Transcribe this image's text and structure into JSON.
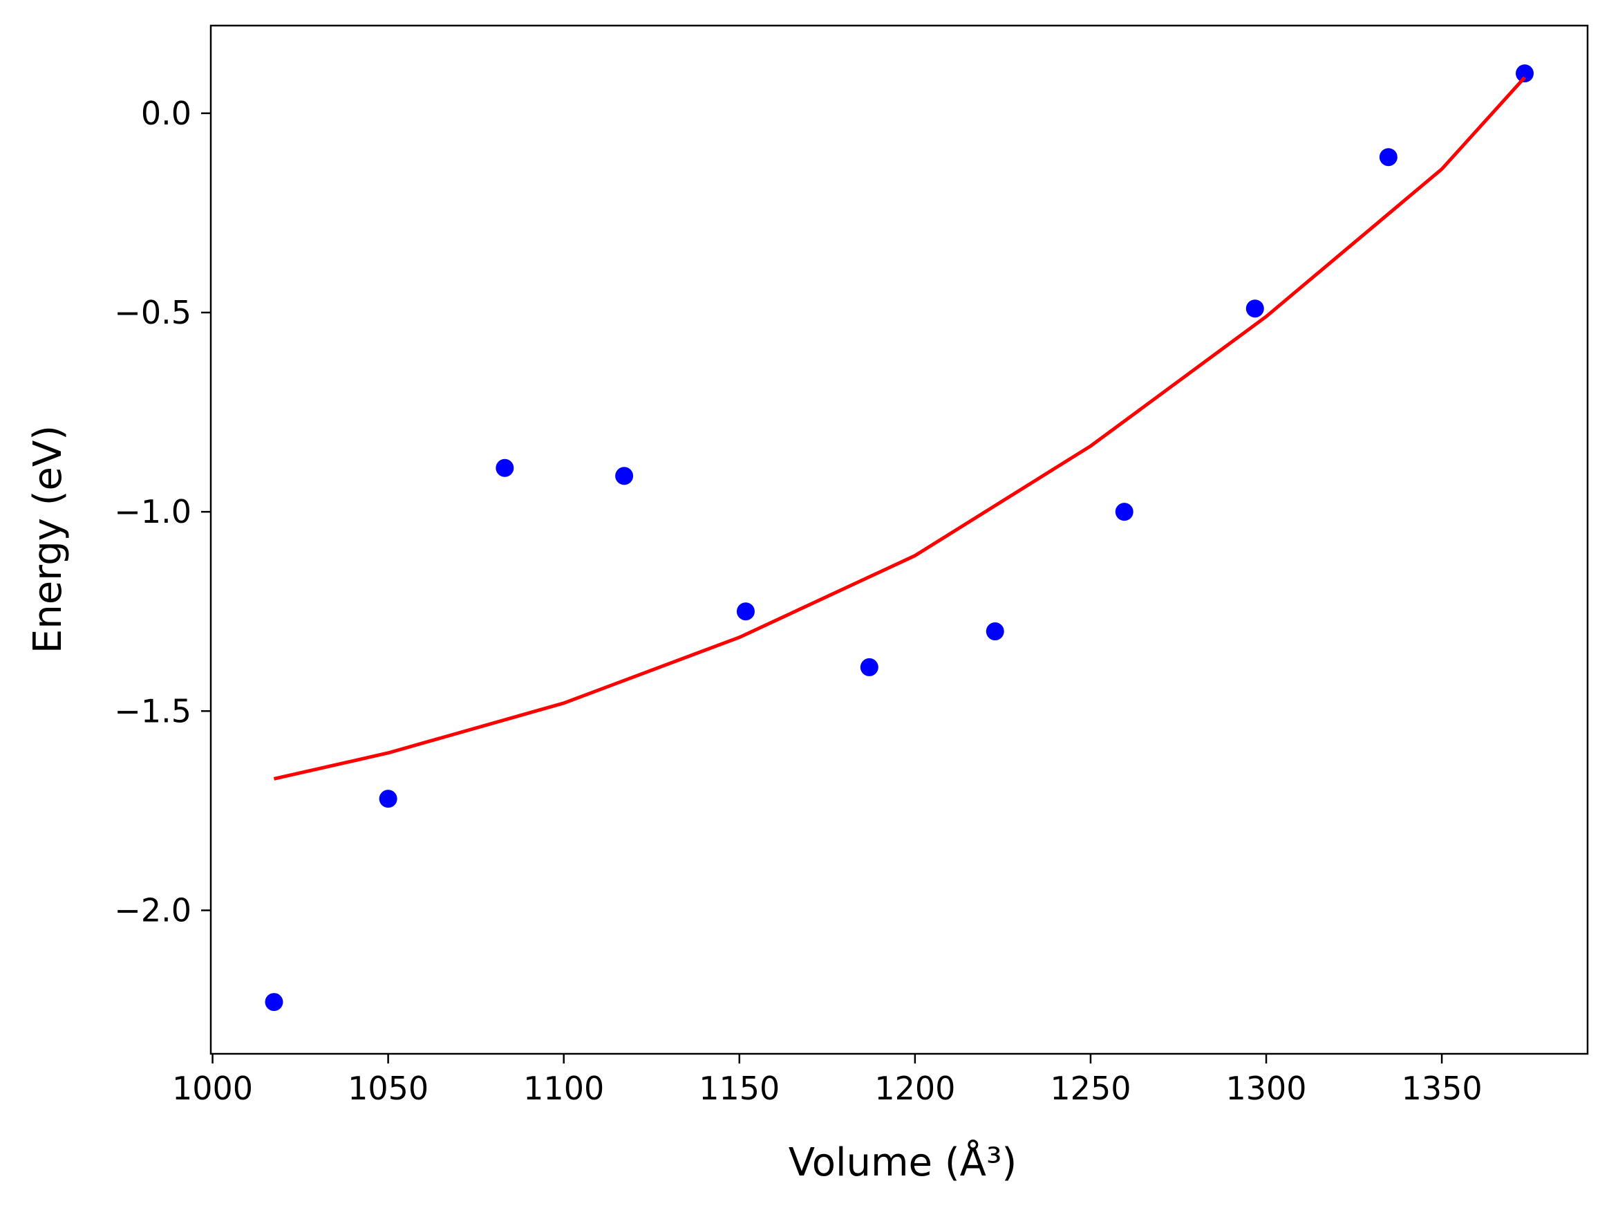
{
  "chart_data": {
    "type": "scatter",
    "xlabel": "Volume (Å³)",
    "ylabel": "Energy (eV)",
    "xlim": [
      999.5,
      1391.5
    ],
    "ylim": [
      -2.36,
      0.22
    ],
    "xticks": [
      1000,
      1050,
      1100,
      1150,
      1200,
      1250,
      1300,
      1350
    ],
    "xtick_labels": [
      "1000",
      "1050",
      "1100",
      "1150",
      "1200",
      "1250",
      "1300",
      "1350"
    ],
    "yticks": [
      0.0,
      -0.5,
      -1.0,
      -1.5,
      -2.0
    ],
    "ytick_labels": [
      "0.0",
      "−0.5",
      "−1.0",
      "−1.5",
      "−2.0"
    ],
    "grid": false,
    "series": [
      {
        "kind": "points",
        "color": "#0000ff",
        "x": [
          1017.5,
          1050.0,
          1083.2,
          1117.2,
          1151.8,
          1187.0,
          1222.8,
          1259.6,
          1296.8,
          1334.8,
          1373.6
        ],
        "y": [
          -2.23,
          -1.72,
          -0.89,
          -0.91,
          -1.25,
          -1.39,
          -1.3,
          -1.0,
          -0.49,
          -0.11,
          0.1
        ]
      },
      {
        "kind": "fit-line",
        "color": "#ff0000",
        "x": [
          1017.5,
          1050,
          1100,
          1150,
          1200,
          1250,
          1300,
          1350,
          1373.6
        ],
        "y": [
          -1.67,
          -1.605,
          -1.48,
          -1.315,
          -1.11,
          -0.835,
          -0.51,
          -0.14,
          0.09
        ]
      }
    ]
  }
}
